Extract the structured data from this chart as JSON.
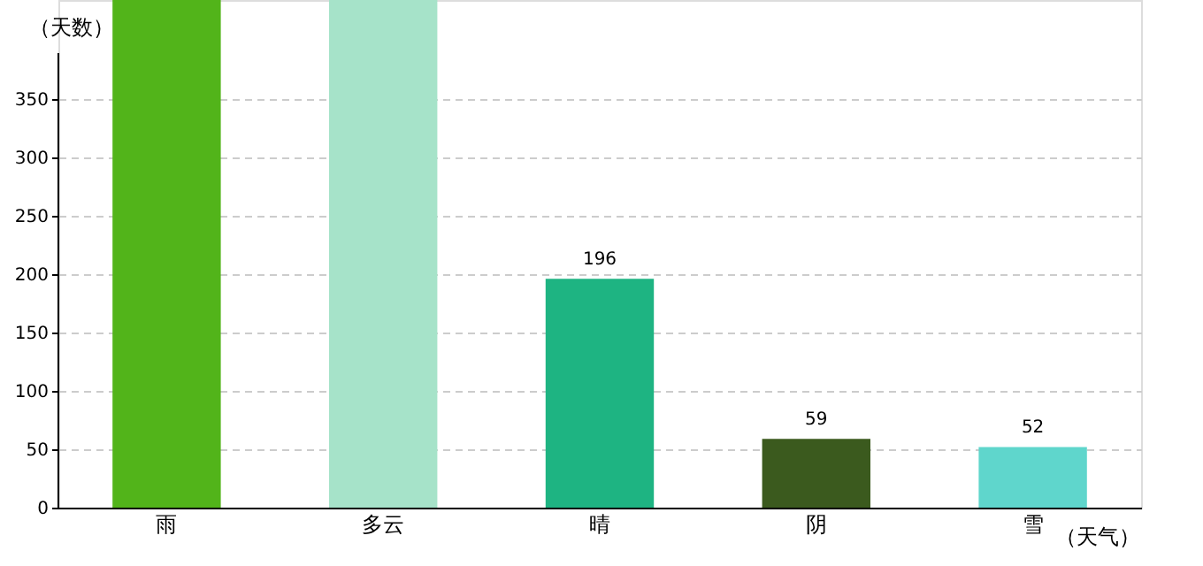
{
  "chart_data": {
    "type": "bar",
    "xlabel": "（天气）",
    "ylabel": "（天数）",
    "categories": [
      "雨",
      "多云",
      "晴",
      "阴",
      "雪"
    ],
    "values": [
      435,
      435,
      196,
      59,
      52
    ],
    "value_labels": [
      null,
      null,
      "196",
      "59",
      "52"
    ],
    "colors": [
      "#52b41a",
      "#a6e3c9",
      "#1eb482",
      "#3b5a1e",
      "#5fd6cc"
    ],
    "ylim": [
      0,
      435
    ],
    "yticks": [
      0,
      50,
      100,
      150,
      200,
      250,
      300,
      350
    ],
    "grid": "y"
  }
}
